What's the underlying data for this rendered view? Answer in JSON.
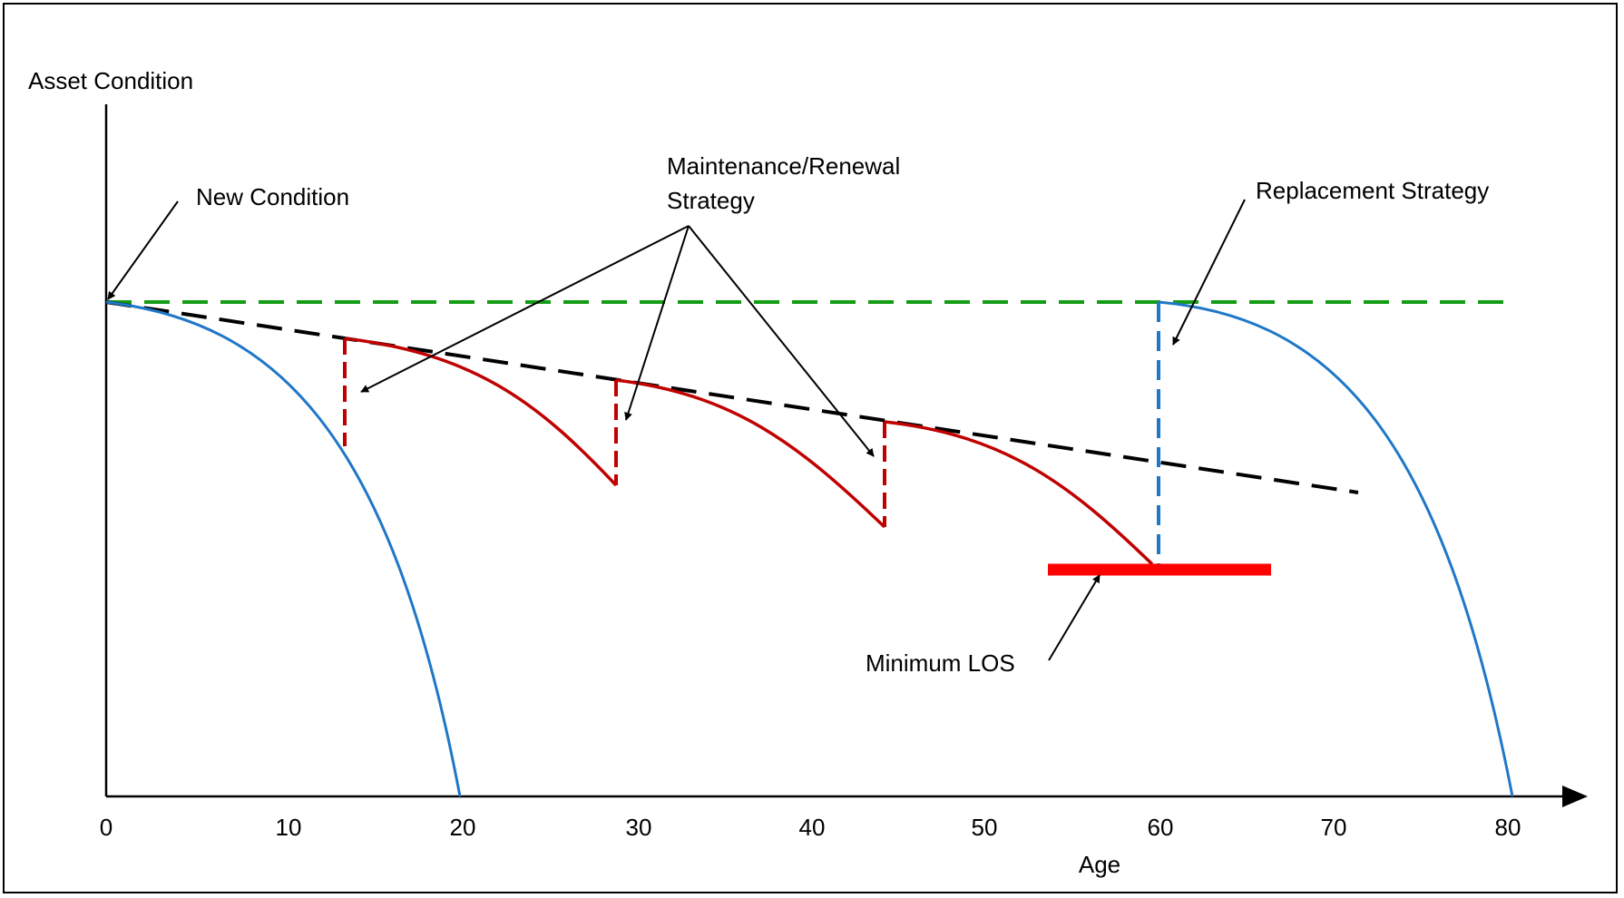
{
  "axes": {
    "y_label": "Asset Condition",
    "x_label": "Age",
    "x_ticks": [
      "0",
      "10",
      "20",
      "30",
      "40",
      "50",
      "60",
      "70",
      "80"
    ]
  },
  "annotations": {
    "new_condition": "New Condition",
    "maintenance_line1": "Maintenance/Renewal",
    "maintenance_line2": "Strategy",
    "replacement": "Replacement Strategy",
    "minimum_los": "Minimum LOS"
  },
  "colors": {
    "axis": "#000000",
    "deterioration_curve": "#1f77c8",
    "renewal_curve": "#c00000",
    "new_condition_line": "#159c15",
    "trend_line": "#000000",
    "minimum_los_bar": "#ff0000"
  }
}
